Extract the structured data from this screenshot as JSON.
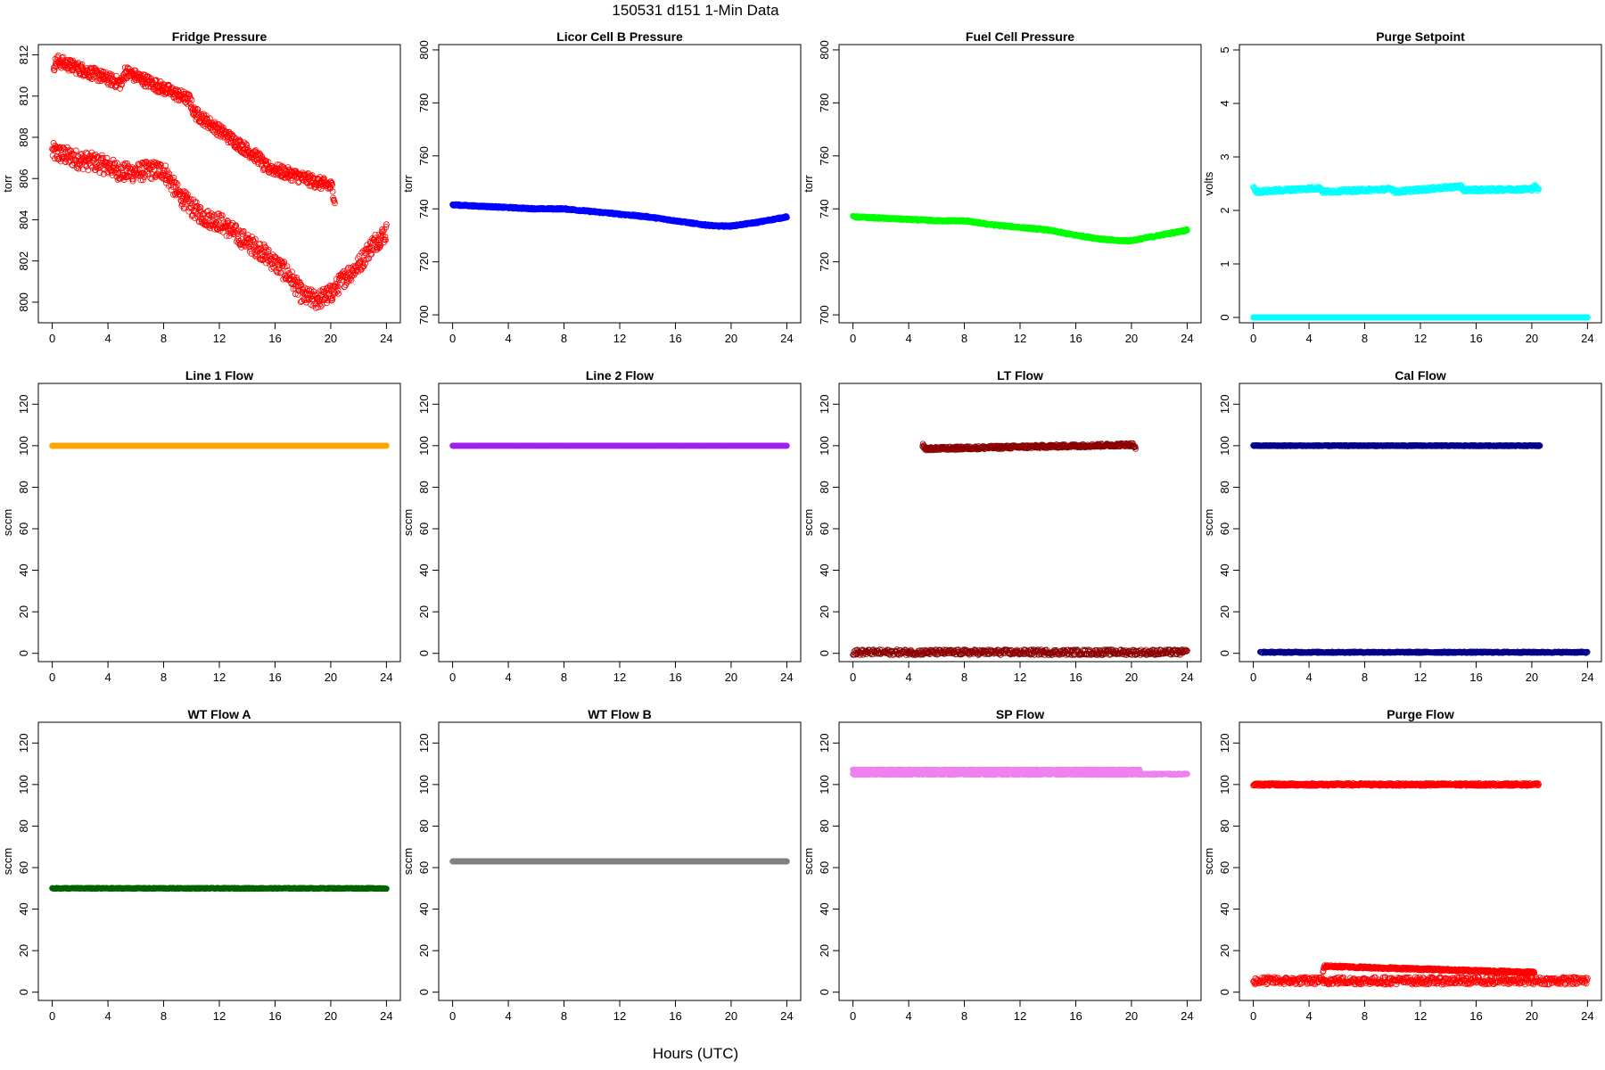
{
  "figure": {
    "title": "150531    d151    1-Min Data",
    "xlabel": "Hours (UTC)"
  },
  "chart_data": [
    {
      "type": "scatter",
      "title": "Fridge Pressure",
      "ylabel": "torr",
      "xlim": [
        -1,
        25
      ],
      "ylim": [
        799,
        812.5
      ],
      "xticks": [
        0,
        4,
        8,
        12,
        16,
        20,
        24
      ],
      "yticks": [
        800,
        802,
        804,
        806,
        808,
        810,
        812
      ],
      "marker": "open",
      "color": "#ff0000",
      "series": [
        {
          "x": [
            0,
            1,
            2,
            3,
            4,
            5,
            6,
            7,
            8,
            9,
            10,
            11,
            12,
            13,
            14,
            15,
            16,
            17,
            18,
            19,
            20,
            21,
            22,
            23,
            24
          ],
          "y": [
            807.3,
            807.1,
            806.9,
            806.8,
            806.6,
            806.3,
            806.3,
            806.4,
            806.4,
            805.3,
            804.6,
            804.1,
            803.9,
            803.4,
            802.9,
            802.5,
            801.9,
            801.3,
            800.3,
            800.1,
            800.4,
            801.2,
            801.8,
            802.8,
            803.4
          ],
          "spread": 0.45
        },
        {
          "x": [
            0.1,
            0.4,
            5,
            5.2,
            9.9,
            10.2,
            15,
            15.2,
            20.1,
            20.3
          ],
          "y": [
            811.5,
            811.7,
            810.6,
            811.2,
            809.8,
            809.2,
            806.9,
            806.6,
            805.6,
            804.9
          ],
          "spread": 0.3
        }
      ]
    },
    {
      "type": "scatter",
      "title": "Licor Cell B Pressure",
      "ylabel": "torr",
      "xlim": [
        -1,
        25
      ],
      "ylim": [
        697,
        802
      ],
      "xticks": [
        0,
        4,
        8,
        12,
        16,
        20,
        24
      ],
      "yticks": [
        700,
        720,
        740,
        760,
        780,
        800
      ],
      "marker": "solid",
      "color": "#0000ff",
      "series": [
        {
          "x": [
            0,
            2,
            4,
            6,
            8,
            10,
            12,
            14,
            16,
            18,
            19,
            20,
            22,
            24
          ],
          "y": [
            741.5,
            741.0,
            740.5,
            740.0,
            740.0,
            739.0,
            738.0,
            737.0,
            735.5,
            734.0,
            733.5,
            733.5,
            735.0,
            737.0
          ],
          "spread": 0.3
        }
      ]
    },
    {
      "type": "scatter",
      "title": "Fuel Cell Pressure",
      "ylabel": "torr",
      "xlim": [
        -1,
        25
      ],
      "ylim": [
        697,
        802
      ],
      "xticks": [
        0,
        4,
        8,
        12,
        16,
        20,
        24
      ],
      "yticks": [
        700,
        720,
        740,
        760,
        780,
        800
      ],
      "marker": "solid",
      "color": "#00ff00",
      "series": [
        {
          "x": [
            0,
            2,
            4,
            6,
            8,
            10,
            12,
            14,
            16,
            18,
            19,
            20,
            22,
            24
          ],
          "y": [
            737.0,
            736.5,
            736.0,
            735.5,
            735.5,
            734.0,
            733.0,
            732.0,
            730.0,
            728.5,
            728.0,
            728.0,
            730.0,
            732.0
          ],
          "spread": 0.3
        }
      ]
    },
    {
      "type": "scatter",
      "title": "Purge Setpoint",
      "ylabel": "volts",
      "xlim": [
        -1,
        25
      ],
      "ylim": [
        -0.1,
        5.1
      ],
      "xticks": [
        0,
        4,
        8,
        12,
        16,
        20,
        24
      ],
      "yticks": [
        0,
        1,
        2,
        3,
        4,
        5
      ],
      "marker": "open",
      "color": "#00ffff",
      "series": [
        {
          "x": [
            0,
            24
          ],
          "y": [
            0,
            0
          ],
          "spread": 0
        },
        {
          "x": [
            0,
            0.2,
            4.8,
            5,
            10,
            10.2,
            14.9,
            15.1,
            20,
            20.2,
            20.5
          ],
          "y": [
            2.45,
            2.35,
            2.42,
            2.35,
            2.4,
            2.35,
            2.45,
            2.38,
            2.4,
            2.45,
            2.38
          ],
          "spread": 0.03
        }
      ]
    },
    {
      "type": "scatter",
      "title": "Line 1 Flow",
      "ylabel": "sccm",
      "xlim": [
        -1,
        25
      ],
      "ylim": [
        -4,
        130
      ],
      "xticks": [
        0,
        4,
        8,
        12,
        16,
        20,
        24
      ],
      "yticks": [
        0,
        20,
        40,
        60,
        80,
        100,
        120
      ],
      "marker": "solid",
      "color": "#ffa500",
      "series": [
        {
          "x": [
            0,
            24
          ],
          "y": [
            100,
            100
          ],
          "spread": 0
        }
      ]
    },
    {
      "type": "scatter",
      "title": "Line 2 Flow",
      "ylabel": "sccm",
      "xlim": [
        -1,
        25
      ],
      "ylim": [
        -4,
        130
      ],
      "xticks": [
        0,
        4,
        8,
        12,
        16,
        20,
        24
      ],
      "yticks": [
        0,
        20,
        40,
        60,
        80,
        100,
        120
      ],
      "marker": "solid",
      "color": "#a020f0",
      "series": [
        {
          "x": [
            0,
            24
          ],
          "y": [
            100,
            100
          ],
          "spread": 0
        }
      ]
    },
    {
      "type": "scatter",
      "title": "LT Flow",
      "ylabel": "sccm",
      "xlim": [
        -1,
        25
      ],
      "ylim": [
        -4,
        130
      ],
      "xticks": [
        0,
        4,
        8,
        12,
        16,
        20,
        24
      ],
      "yticks": [
        0,
        20,
        40,
        60,
        80,
        100,
        120
      ],
      "marker": "open",
      "color": "#8b0000",
      "series": [
        {
          "x": [
            0,
            24
          ],
          "y": [
            0.5,
            0.5
          ],
          "spread": 1.3
        },
        {
          "x": [
            5,
            5.2,
            20.1,
            20.3
          ],
          "y": [
            100.5,
            98.5,
            100.5,
            98.5
          ],
          "spread": 0.8
        }
      ]
    },
    {
      "type": "scatter",
      "title": "Cal Flow",
      "ylabel": "sccm",
      "xlim": [
        -1,
        25
      ],
      "ylim": [
        -4,
        130
      ],
      "xticks": [
        0,
        4,
        8,
        12,
        16,
        20,
        24
      ],
      "yticks": [
        0,
        20,
        40,
        60,
        80,
        100,
        120
      ],
      "marker": "open",
      "color": "#00008b",
      "series": [
        {
          "x": [
            0.5,
            24
          ],
          "y": [
            0.5,
            0.5
          ],
          "spread": 0.3
        },
        {
          "x": [
            0,
            0.5,
            4.8,
            5.2,
            9.9,
            10.3,
            14.8,
            15.2,
            20,
            20.6
          ],
          "y": [
            100,
            100,
            100,
            100,
            100,
            100,
            100,
            100,
            100,
            100
          ],
          "spread": 0.2
        }
      ]
    },
    {
      "type": "scatter",
      "title": "WT Flow A",
      "ylabel": "sccm",
      "xlim": [
        -1,
        25
      ],
      "ylim": [
        -4,
        130
      ],
      "xticks": [
        0,
        4,
        8,
        12,
        16,
        20,
        24
      ],
      "yticks": [
        0,
        20,
        40,
        60,
        80,
        100,
        120
      ],
      "marker": "solid",
      "color": "#006400",
      "series": [
        {
          "x": [
            0,
            24
          ],
          "y": [
            50,
            50
          ],
          "spread": 0.2
        }
      ]
    },
    {
      "type": "scatter",
      "title": "WT Flow B",
      "ylabel": "sccm",
      "xlim": [
        -1,
        25
      ],
      "ylim": [
        -4,
        130
      ],
      "xticks": [
        0,
        4,
        8,
        12,
        16,
        20,
        24
      ],
      "yticks": [
        0,
        20,
        40,
        60,
        80,
        100,
        120
      ],
      "marker": "solid",
      "color": "#808080",
      "series": [
        {
          "x": [
            0,
            24
          ],
          "y": [
            63,
            63
          ],
          "spread": 0
        }
      ]
    },
    {
      "type": "scatter",
      "title": "SP Flow",
      "ylabel": "sccm",
      "xlim": [
        -1,
        25
      ],
      "ylim": [
        -4,
        130
      ],
      "xticks": [
        0,
        4,
        8,
        12,
        16,
        20,
        24
      ],
      "yticks": [
        0,
        20,
        40,
        60,
        80,
        100,
        120
      ],
      "marker": "solid",
      "color": "#ee82ee",
      "series": [
        {
          "x": [
            0,
            24
          ],
          "y": [
            105,
            105
          ],
          "spread": 0.3
        },
        {
          "x": [
            0,
            0.4,
            5,
            5.4,
            10,
            10.4,
            15,
            15.4,
            20,
            20.6
          ],
          "y": [
            107,
            107,
            107,
            107,
            107,
            107,
            107,
            107,
            107,
            107
          ],
          "spread": 0.2
        }
      ]
    },
    {
      "type": "scatter",
      "title": "Purge Flow",
      "ylabel": "sccm",
      "xlim": [
        -1,
        25
      ],
      "ylim": [
        -4,
        130
      ],
      "xticks": [
        0,
        4,
        8,
        12,
        16,
        20,
        24
      ],
      "yticks": [
        0,
        20,
        40,
        60,
        80,
        100,
        120
      ],
      "marker": "open",
      "color": "#ff0000",
      "series": [
        {
          "x": [
            0,
            24
          ],
          "y": [
            5.5,
            5.5
          ],
          "spread": 1.8
        },
        {
          "x": [
            5,
            5.1,
            20.2
          ],
          "y": [
            10,
            12.5,
            9.5
          ],
          "spread": 0.5
        },
        {
          "x": [
            0,
            0.3,
            4.8,
            5.1,
            9.8,
            10.2,
            14.8,
            15.1,
            19.9,
            20.5
          ],
          "y": [
            100,
            100,
            100,
            100,
            100,
            100,
            100,
            100,
            100,
            100
          ],
          "spread": 0.6
        }
      ]
    }
  ]
}
